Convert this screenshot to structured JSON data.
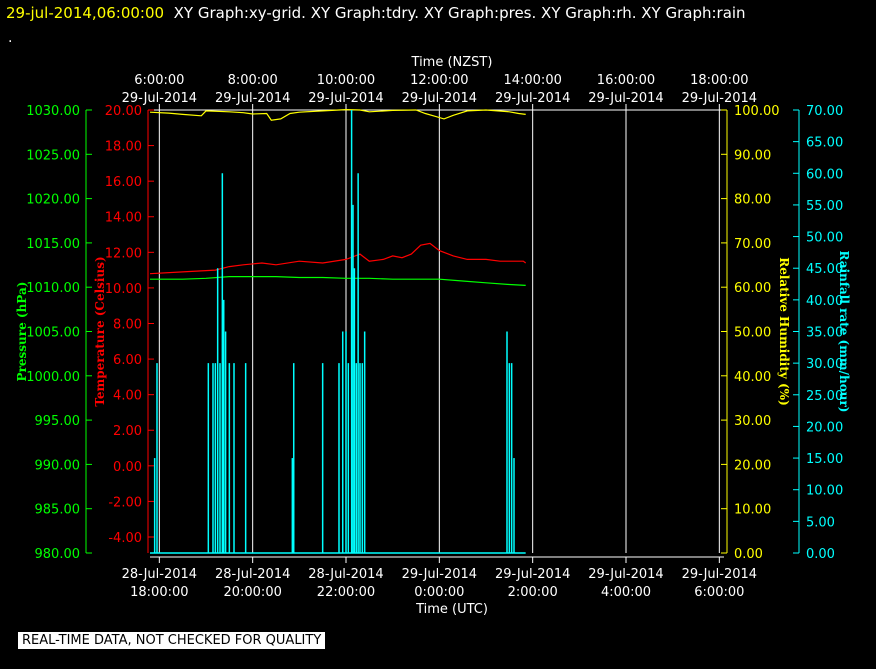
{
  "header": {
    "timestamp": "29-jul-2014,06:00:00",
    "titles": "XY Graph:xy-grid.  XY Graph:tdry.  XY Graph:pres.  XY Graph:rh.  XY Graph:rain"
  },
  "dot": ".",
  "footer": "REAL-TIME DATA, NOT CHECKED FOR QUALITY",
  "colors": {
    "pressure": "#00ff00",
    "temperature": "#ff0000",
    "humidity": "#ffff00",
    "rainfall": "#00ffff",
    "grid": "#ffffff",
    "background": "#000000"
  },
  "chart_data": {
    "type": "line",
    "top_axis": {
      "title": "Time (NZST)",
      "ticks": [
        {
          "t": "6:00:00",
          "d": "29-Jul-2014"
        },
        {
          "t": "8:00:00",
          "d": "29-Jul-2014"
        },
        {
          "t": "10:00:00",
          "d": "29-Jul-2014"
        },
        {
          "t": "12:00:00",
          "d": "29-Jul-2014"
        },
        {
          "t": "14:00:00",
          "d": "29-Jul-2014"
        },
        {
          "t": "16:00:00",
          "d": "29-Jul-2014"
        },
        {
          "t": "18:00:00",
          "d": "29-Jul-2014"
        }
      ]
    },
    "bottom_axis": {
      "title": "Time (UTC)",
      "ticks": [
        {
          "d": "28-Jul-2014",
          "t": "18:00:00"
        },
        {
          "d": "28-Jul-2014",
          "t": "20:00:00"
        },
        {
          "d": "28-Jul-2014",
          "t": "22:00:00"
        },
        {
          "d": "29-Jul-2014",
          "t": "0:00:00"
        },
        {
          "d": "29-Jul-2014",
          "t": "2:00:00"
        },
        {
          "d": "29-Jul-2014",
          "t": "4:00:00"
        },
        {
          "d": "29-Jul-2014",
          "t": "6:00:00"
        }
      ]
    },
    "x_range_hours_utc": [
      17.8,
      30.1
    ],
    "grid": true,
    "axes": {
      "pressure": {
        "label": "Pressure (hPa)",
        "range": [
          980,
          1030
        ],
        "ticks": [
          "980.00",
          "985.00",
          "990.00",
          "995.00",
          "1000.00",
          "1005.00",
          "1010.00",
          "1015.00",
          "1020.00",
          "1025.00",
          "1030.00"
        ]
      },
      "temperature": {
        "label": "Temperature (Celsius)",
        "range": [
          -4.9,
          20
        ],
        "ticks": [
          "-4.00",
          "-2.00",
          "0.00",
          "2.00",
          "4.00",
          "6.00",
          "8.00",
          "10.00",
          "12.00",
          "14.00",
          "16.00",
          "18.00",
          "20.00"
        ]
      },
      "humidity": {
        "label": "Relative Humidity (%)",
        "range": [
          0,
          100
        ],
        "ticks": [
          "0.00",
          "10.00",
          "20.00",
          "30.00",
          "40.00",
          "50.00",
          "60.00",
          "70.00",
          "80.00",
          "90.00",
          "100.00"
        ]
      },
      "rainfall": {
        "label": "Rainfall rate (mm/hour)",
        "range": [
          0,
          70
        ],
        "ticks": [
          "0.00",
          "5.00",
          "10.00",
          "15.00",
          "20.00",
          "25.00",
          "30.00",
          "35.00",
          "40.00",
          "45.00",
          "50.00",
          "55.00",
          "60.00",
          "65.00",
          "70.00"
        ]
      }
    },
    "series": [
      {
        "name": "tdry",
        "axis": "temperature",
        "points": [
          [
            17.8,
            10.8
          ],
          [
            18.5,
            10.9
          ],
          [
            19.2,
            11.0
          ],
          [
            19.5,
            11.2
          ],
          [
            19.8,
            11.3
          ],
          [
            20.2,
            11.4
          ],
          [
            20.5,
            11.3
          ],
          [
            21.0,
            11.5
          ],
          [
            21.5,
            11.4
          ],
          [
            22.0,
            11.6
          ],
          [
            22.3,
            11.9
          ],
          [
            22.5,
            11.5
          ],
          [
            22.8,
            11.6
          ],
          [
            23.0,
            11.8
          ],
          [
            23.2,
            11.7
          ],
          [
            23.4,
            11.9
          ],
          [
            23.6,
            12.4
          ],
          [
            23.8,
            12.5
          ],
          [
            24.0,
            12.1
          ],
          [
            24.3,
            11.8
          ],
          [
            24.6,
            11.6
          ],
          [
            25.0,
            11.6
          ],
          [
            25.3,
            11.5
          ],
          [
            25.5,
            11.5
          ],
          [
            25.8,
            11.5
          ],
          [
            25.85,
            11.4
          ]
        ]
      },
      {
        "name": "pres",
        "axis": "pressure",
        "points": [
          [
            17.8,
            1010.9
          ],
          [
            18.5,
            1010.9
          ],
          [
            19.0,
            1011.0
          ],
          [
            19.5,
            1011.2
          ],
          [
            20.0,
            1011.2
          ],
          [
            20.5,
            1011.2
          ],
          [
            21.0,
            1011.1
          ],
          [
            21.5,
            1011.1
          ],
          [
            22.0,
            1011.0
          ],
          [
            22.5,
            1011.0
          ],
          [
            23.0,
            1010.9
          ],
          [
            23.5,
            1010.9
          ],
          [
            24.0,
            1010.9
          ],
          [
            24.5,
            1010.7
          ],
          [
            25.0,
            1010.5
          ],
          [
            25.5,
            1010.3
          ],
          [
            25.85,
            1010.2
          ]
        ]
      },
      {
        "name": "rh",
        "axis": "humidity",
        "points": [
          [
            17.8,
            99.5
          ],
          [
            18.2,
            99.3
          ],
          [
            18.5,
            99.0
          ],
          [
            18.9,
            98.7
          ],
          [
            19.0,
            99.8
          ],
          [
            19.5,
            99.6
          ],
          [
            19.8,
            99.4
          ],
          [
            20.0,
            99.1
          ],
          [
            20.3,
            99.2
          ],
          [
            20.4,
            97.7
          ],
          [
            20.6,
            98.0
          ],
          [
            20.8,
            99.2
          ],
          [
            21.0,
            99.5
          ],
          [
            21.5,
            99.8
          ],
          [
            22.0,
            100.1
          ],
          [
            22.3,
            100.0
          ],
          [
            22.5,
            99.6
          ],
          [
            23.0,
            99.9
          ],
          [
            23.5,
            100.0
          ],
          [
            23.7,
            99.2
          ],
          [
            23.9,
            98.6
          ],
          [
            24.1,
            98.0
          ],
          [
            24.3,
            98.8
          ],
          [
            24.6,
            99.8
          ],
          [
            25.0,
            100.0
          ],
          [
            25.5,
            99.6
          ],
          [
            25.7,
            99.2
          ],
          [
            25.85,
            99.0
          ]
        ]
      },
      {
        "name": "rain",
        "axis": "rainfall",
        "baseline": 0,
        "spikes": [
          [
            17.9,
            15
          ],
          [
            17.95,
            30
          ],
          [
            19.05,
            30
          ],
          [
            19.15,
            30
          ],
          [
            19.2,
            30
          ],
          [
            19.25,
            45
          ],
          [
            19.3,
            30
          ],
          [
            19.35,
            60
          ],
          [
            19.38,
            40
          ],
          [
            19.42,
            35
          ],
          [
            19.5,
            30
          ],
          [
            19.6,
            30
          ],
          [
            19.85,
            30
          ],
          [
            20.85,
            15
          ],
          [
            20.88,
            30
          ],
          [
            21.5,
            30
          ],
          [
            21.85,
            30
          ],
          [
            21.93,
            35
          ],
          [
            22.0,
            35
          ],
          [
            22.05,
            30
          ],
          [
            22.12,
            70
          ],
          [
            22.15,
            55
          ],
          [
            22.18,
            45
          ],
          [
            22.22,
            30
          ],
          [
            22.26,
            60
          ],
          [
            22.3,
            30
          ],
          [
            22.35,
            30
          ],
          [
            22.4,
            35
          ],
          [
            25.45,
            35
          ],
          [
            25.5,
            30
          ],
          [
            25.55,
            30
          ],
          [
            25.6,
            15
          ]
        ]
      }
    ]
  }
}
